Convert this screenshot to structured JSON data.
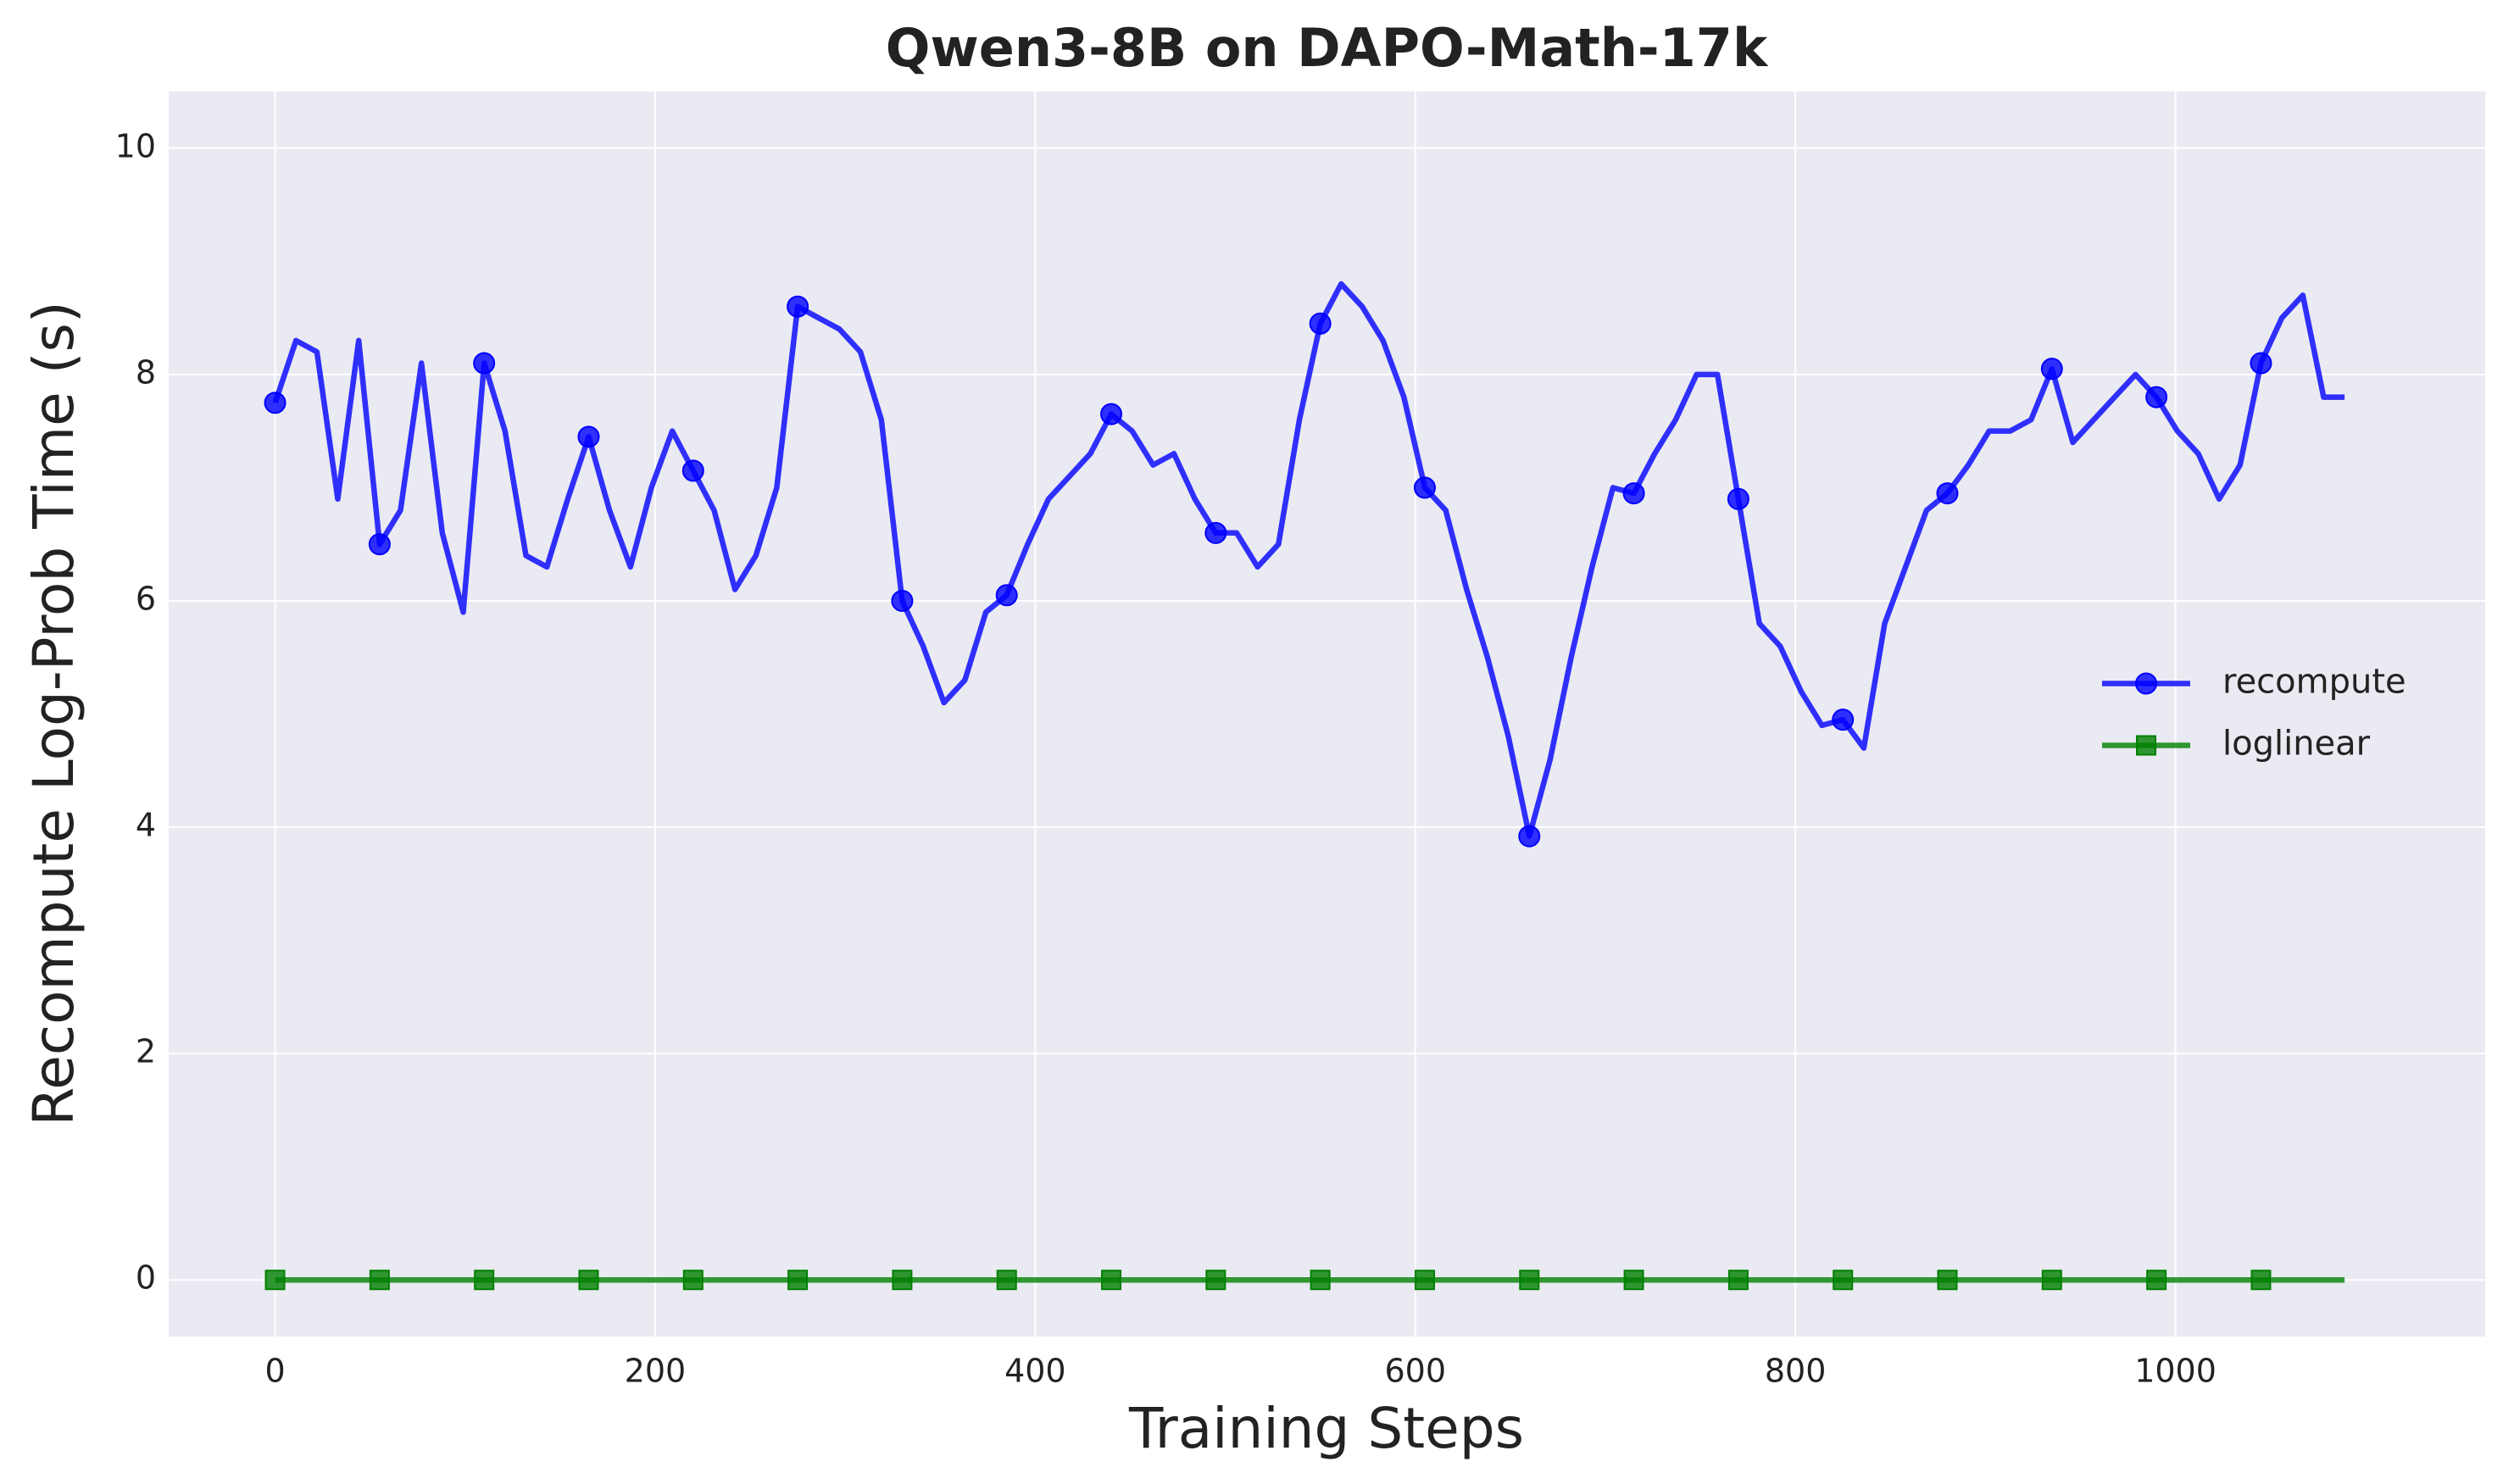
{
  "chart_data": {
    "type": "line",
    "title": "Qwen3-8B on DAPO-Math-17k",
    "x_label": "Training Steps",
    "y_label": "Recompute Log-Prob Time (s)",
    "x": [
      0,
      11,
      22,
      33,
      44,
      55,
      66,
      77,
      88,
      99,
      110,
      121,
      132,
      143,
      154,
      165,
      176,
      187,
      198,
      209,
      220,
      231,
      242,
      253,
      264,
      275,
      286,
      297,
      308,
      319,
      330,
      341,
      352,
      363,
      374,
      385,
      396,
      407,
      418,
      429,
      440,
      451,
      462,
      473,
      484,
      495,
      506,
      517,
      528,
      539,
      550,
      561,
      572,
      583,
      594,
      605,
      616,
      627,
      638,
      649,
      660,
      671,
      682,
      693,
      704,
      715,
      726,
      737,
      748,
      759,
      770,
      781,
      792,
      803,
      814,
      825,
      836,
      847,
      858,
      869,
      880,
      891,
      902,
      913,
      924,
      935,
      946,
      957,
      968,
      979,
      990,
      1001,
      1012,
      1023,
      1034,
      1045,
      1056,
      1067,
      1078,
      1089
    ],
    "series": [
      {
        "name": "recompute",
        "color": "#0000ff",
        "marker": "circle",
        "values": [
          7.75,
          8.3,
          8.2,
          6.9,
          8.3,
          6.5,
          6.8,
          8.1,
          6.6,
          5.9,
          8.1,
          7.5,
          6.4,
          6.3,
          6.9,
          7.45,
          6.8,
          6.3,
          7.0,
          7.5,
          7.15,
          6.8,
          6.1,
          6.4,
          7.0,
          8.6,
          8.5,
          8.4,
          8.2,
          7.6,
          6.0,
          5.6,
          5.1,
          5.3,
          5.9,
          6.05,
          6.5,
          6.9,
          7.1,
          7.3,
          7.65,
          7.5,
          7.2,
          7.3,
          6.9,
          6.6,
          6.6,
          6.3,
          6.5,
          7.6,
          8.45,
          8.8,
          8.6,
          8.3,
          7.8,
          7.0,
          6.8,
          6.1,
          5.5,
          4.8,
          3.92,
          4.6,
          5.5,
          6.3,
          7.0,
          6.95,
          7.3,
          7.6,
          8.0,
          8.0,
          6.9,
          5.8,
          5.6,
          5.2,
          4.9,
          4.95,
          4.7,
          5.8,
          6.3,
          6.8,
          6.95,
          7.2,
          7.5,
          7.5,
          7.6,
          8.05,
          7.4,
          7.6,
          7.8,
          8.0,
          7.8,
          7.5,
          7.3,
          6.9,
          7.2,
          8.1,
          8.5,
          8.7,
          7.8,
          7.8
        ]
      },
      {
        "name": "loglinear",
        "color": "#008000",
        "marker": "square",
        "values": [
          0,
          0,
          0,
          0,
          0,
          0,
          0,
          0,
          0,
          0,
          0,
          0,
          0,
          0,
          0,
          0,
          0,
          0,
          0,
          0,
          0,
          0,
          0,
          0,
          0,
          0,
          0,
          0,
          0,
          0,
          0,
          0,
          0,
          0,
          0,
          0,
          0,
          0,
          0,
          0,
          0,
          0,
          0,
          0,
          0,
          0,
          0,
          0,
          0,
          0,
          0,
          0,
          0,
          0,
          0,
          0,
          0,
          0,
          0,
          0,
          0,
          0,
          0,
          0,
          0,
          0,
          0,
          0,
          0,
          0,
          0,
          0,
          0,
          0,
          0,
          0,
          0,
          0,
          0,
          0,
          0,
          0,
          0,
          0,
          0,
          0,
          0,
          0,
          0,
          0,
          0,
          0,
          0,
          0,
          0,
          0,
          0,
          0,
          0,
          0
        ]
      }
    ],
    "markevery": 5,
    "xlim": [
      -56,
      1163
    ],
    "ylim": [
      -0.5,
      10.5
    ],
    "xticks": [
      0,
      200,
      400,
      600,
      800,
      1000
    ],
    "yticks": [
      0,
      2,
      4,
      6,
      8,
      10
    ],
    "grid": true,
    "legend": "center right"
  }
}
